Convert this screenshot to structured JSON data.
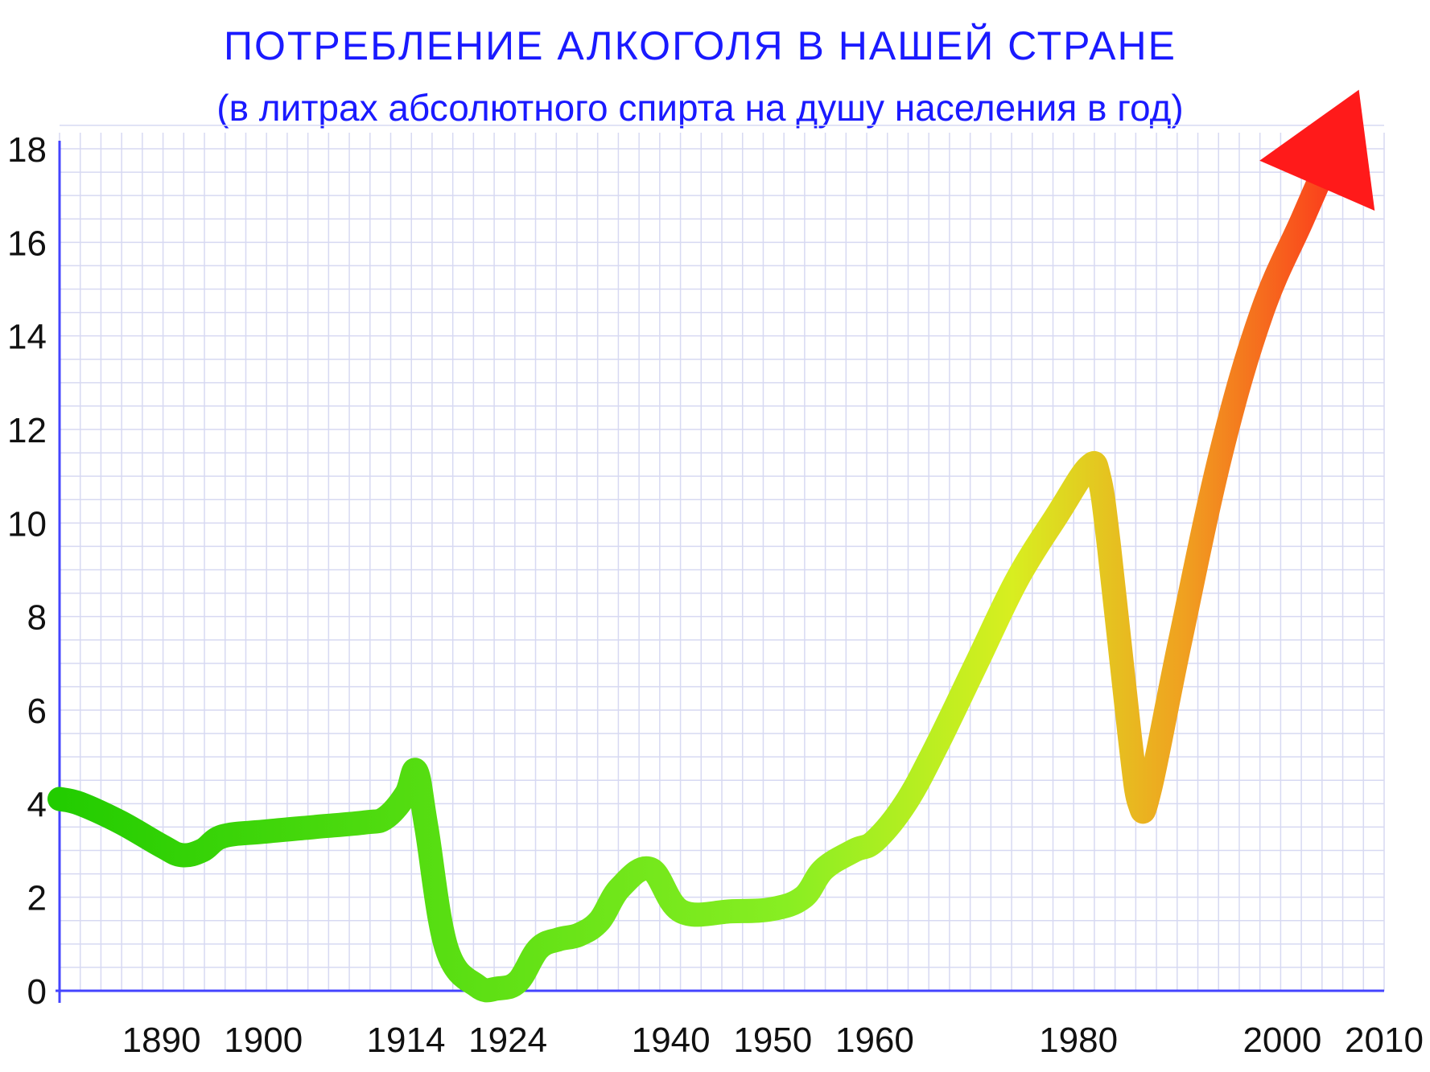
{
  "chart_data": {
    "type": "line",
    "title": "ПОТРЕБЛЕНИЕ  АЛКОГОЛЯ  В  НАШЕЙ  СТРАНЕ",
    "subtitle": "(в литрах абсолютного спирта на душу населения в год)",
    "xlabel": "",
    "ylabel": "",
    "xlim": [
      1880,
      2010
    ],
    "ylim": [
      0,
      18
    ],
    "grid": true,
    "x_ticks": [
      1890,
      1900,
      1914,
      1924,
      1940,
      1950,
      1960,
      1980,
      2000,
      2010
    ],
    "y_ticks": [
      0,
      2,
      4,
      6,
      8,
      10,
      12,
      14,
      16,
      18
    ],
    "series": [
      {
        "x": [
          1880,
          1882,
          1886,
          1890,
          1892,
          1894,
          1896,
          1900,
          1905,
          1910,
          1912,
          1914,
          1915,
          1916,
          1918,
          1921,
          1923,
          1925,
          1927,
          1929,
          1931,
          1933,
          1935,
          1938,
          1941,
          1946,
          1950,
          1953,
          1955,
          1958,
          1960,
          1963,
          1966,
          1970,
          1974,
          1978,
          1981,
          1982,
          1983,
          1985,
          1986,
          1987,
          1990,
          1994,
          1998,
          2002,
          2005
        ],
        "y": [
          4.1,
          4.0,
          3.6,
          3.1,
          2.9,
          3.0,
          3.3,
          3.4,
          3.5,
          3.6,
          3.7,
          4.2,
          4.7,
          3.5,
          0.9,
          0.1,
          0.05,
          0.2,
          0.9,
          1.1,
          1.2,
          1.5,
          2.2,
          2.6,
          1.7,
          1.7,
          1.75,
          2.0,
          2.6,
          3.0,
          3.2,
          4.0,
          5.2,
          7.0,
          8.8,
          10.2,
          11.2,
          11.0,
          9.5,
          5.5,
          4.0,
          4.3,
          7.5,
          11.5,
          14.5,
          16.5,
          18.0
        ]
      }
    ],
    "colors": {
      "line_start": "#22cc00",
      "line_mid": "#d8ee20",
      "line_end": "#ff1a1a",
      "axis": "#4444ff",
      "grid": "#d7d9f2",
      "title": "#1a1aff"
    }
  }
}
